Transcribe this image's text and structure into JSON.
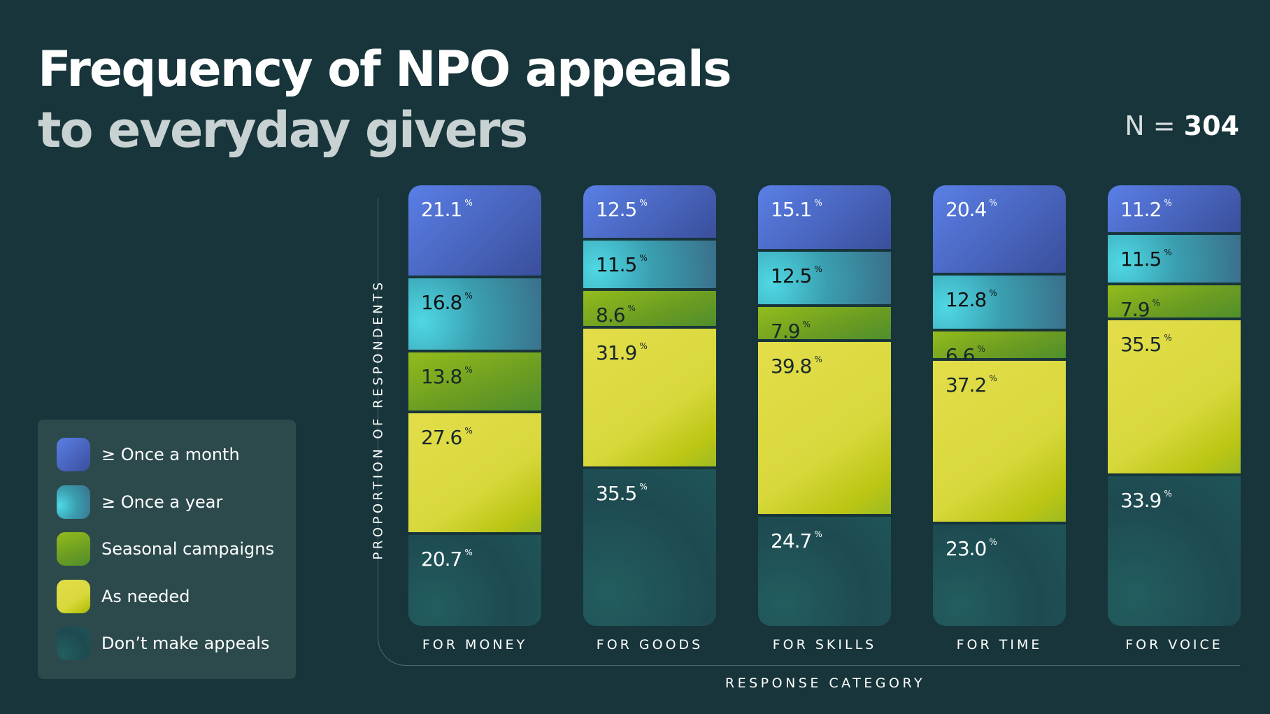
{
  "title_line1": "Frequency of NPO appeals",
  "title_line2": "to everyday givers",
  "sample": {
    "label": "N =",
    "value": "304"
  },
  "chart_data": {
    "type": "bar",
    "stacked": true,
    "title": "Frequency of NPO appeals to everyday givers",
    "xlabel": "RESPONSE CATEGORY",
    "ylabel": "PROPORTION OF RESPONDENTS",
    "categories": [
      "FOR MONEY",
      "FOR GOODS",
      "FOR SKILLS",
      "FOR TIME",
      "FOR VOICE"
    ],
    "unit": "%",
    "legend_position": "left",
    "grid": false,
    "series": [
      {
        "name": "≥ Once a month",
        "color": "#4a6bd0",
        "values": [
          21.1,
          12.5,
          15.1,
          20.4,
          11.2
        ]
      },
      {
        "name": "≥ Once a year",
        "color": "#3fb3c4",
        "values": [
          16.8,
          11.5,
          12.5,
          12.8,
          11.5
        ]
      },
      {
        "name": "Seasonal campaigns",
        "color": "#7aa81f",
        "values": [
          13.8,
          8.6,
          7.9,
          6.6,
          7.9
        ]
      },
      {
        "name": "As needed",
        "color": "#d9d83a",
        "values": [
          27.6,
          31.9,
          39.8,
          37.2,
          35.5
        ]
      },
      {
        "name": "Don’t make appeals",
        "color": "#1f5558",
        "values": [
          20.7,
          35.5,
          24.7,
          23.0,
          33.9
        ]
      }
    ]
  }
}
